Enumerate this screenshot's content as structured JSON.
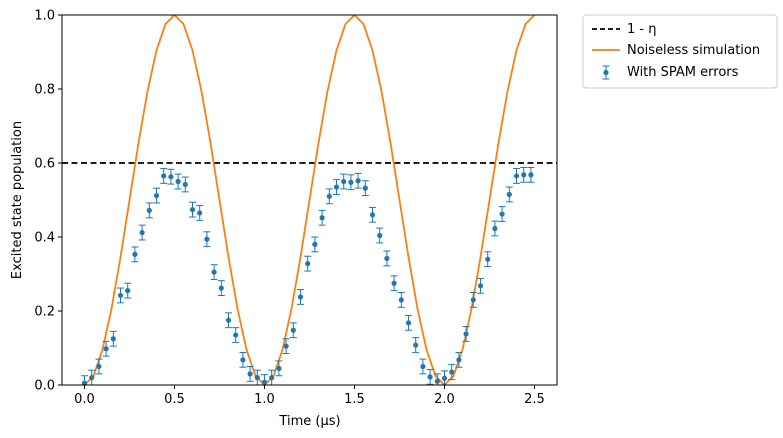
{
  "chart_data": {
    "type": "scatter",
    "xlabel": "Time (µs)",
    "ylabel": "Excited state population",
    "xlim": [
      -0.125,
      2.625
    ],
    "ylim": [
      0,
      1
    ],
    "x_ticks": [
      0.0,
      0.5,
      1.0,
      1.5,
      2.0,
      2.5
    ],
    "x_tick_labels": [
      "0.0",
      "0.5",
      "1.0",
      "1.5",
      "2.0",
      "2.5"
    ],
    "y_ticks": [
      0.0,
      0.2,
      0.4,
      0.6,
      0.8,
      1.0
    ],
    "y_tick_labels": [
      "0.0",
      "0.2",
      "0.4",
      "0.6",
      "0.8",
      "1.0"
    ],
    "legend_position": "outside-top-right",
    "grid": false,
    "threshold": {
      "name": "1 - η",
      "y": 0.6,
      "color": "#000000",
      "style": "dashed"
    },
    "noiseless": {
      "name": "Noiseless simulation",
      "color": "#ff7f0e",
      "period": 1.0,
      "x_range": [
        0,
        2.5
      ],
      "samples": 51
    },
    "measured": {
      "name": "With SPAM errors",
      "color": "#1f77b4",
      "x": [
        0.0,
        0.04,
        0.08,
        0.12,
        0.16,
        0.2,
        0.24,
        0.28,
        0.32,
        0.36,
        0.4,
        0.44,
        0.48,
        0.52,
        0.56,
        0.6,
        0.64,
        0.68,
        0.72,
        0.76,
        0.8,
        0.84,
        0.88,
        0.92,
        0.96,
        1.0,
        1.04,
        1.08,
        1.12,
        1.16,
        1.2,
        1.24,
        1.28,
        1.32,
        1.36,
        1.4,
        1.44,
        1.48,
        1.52,
        1.56,
        1.6,
        1.64,
        1.68,
        1.72,
        1.76,
        1.8,
        1.84,
        1.88,
        1.92,
        1.96,
        2.0,
        2.04,
        2.08,
        2.12,
        2.16,
        2.2,
        2.24,
        2.28,
        2.32,
        2.36,
        2.4,
        2.44,
        2.48
      ],
      "y": [
        0.005,
        0.02,
        0.05,
        0.098,
        0.125,
        0.242,
        0.255,
        0.353,
        0.412,
        0.472,
        0.512,
        0.565,
        0.563,
        0.55,
        0.542,
        0.474,
        0.465,
        0.394,
        0.305,
        0.262,
        0.175,
        0.135,
        0.068,
        0.03,
        0.02,
        0.008,
        0.02,
        0.045,
        0.105,
        0.148,
        0.238,
        0.328,
        0.38,
        0.452,
        0.51,
        0.535,
        0.55,
        0.548,
        0.552,
        0.532,
        0.46,
        0.404,
        0.342,
        0.275,
        0.23,
        0.168,
        0.108,
        0.05,
        0.022,
        0.01,
        0.018,
        0.035,
        0.068,
        0.138,
        0.23,
        0.268,
        0.34,
        0.423,
        0.462,
        0.515,
        0.565,
        0.568,
        0.568
      ],
      "yerr": 0.02
    }
  }
}
